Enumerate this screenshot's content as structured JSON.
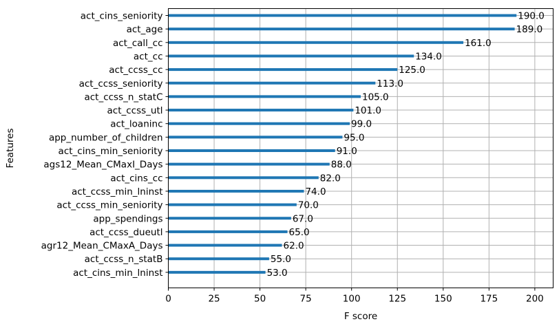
{
  "chart_data": {
    "type": "bar",
    "orientation": "horizontal",
    "title": "",
    "xlabel": "F score",
    "ylabel": "Features",
    "xlim": [
      0,
      210
    ],
    "xticks": [
      0,
      25,
      50,
      75,
      100,
      125,
      150,
      175,
      200
    ],
    "grid": true,
    "bar_color": "#1f77b4",
    "categories": [
      "act_cins_seniority",
      "act_age",
      "act_call_cc",
      "act_cc",
      "act_ccss_cc",
      "act_ccss_seniority",
      "act_ccss_n_statC",
      "act_ccss_utl",
      "act_loaninc",
      "app_number_of_children",
      "act_cins_min_seniority",
      "ags12_Mean_CMaxI_Days",
      "act_cins_cc",
      "act_ccss_min_lninst",
      "act_ccss_min_seniority",
      "app_spendings",
      "act_ccss_dueutl",
      "agr12_Mean_CMaxA_Days",
      "act_ccss_n_statB",
      "act_cins_min_lninst"
    ],
    "values": [
      190.0,
      189.0,
      161.0,
      134.0,
      125.0,
      113.0,
      105.0,
      101.0,
      99.0,
      95.0,
      91.0,
      88.0,
      82.0,
      74.0,
      70.0,
      67.0,
      65.0,
      62.0,
      55.0,
      53.0
    ],
    "value_labels": [
      "190.0",
      "189.0",
      "161.0",
      "134.0",
      "125.0",
      "113.0",
      "105.0",
      "101.0",
      "99.0",
      "95.0",
      "91.0",
      "88.0",
      "82.0",
      "74.0",
      "70.0",
      "67.0",
      "65.0",
      "62.0",
      "55.0",
      "53.0"
    ]
  }
}
